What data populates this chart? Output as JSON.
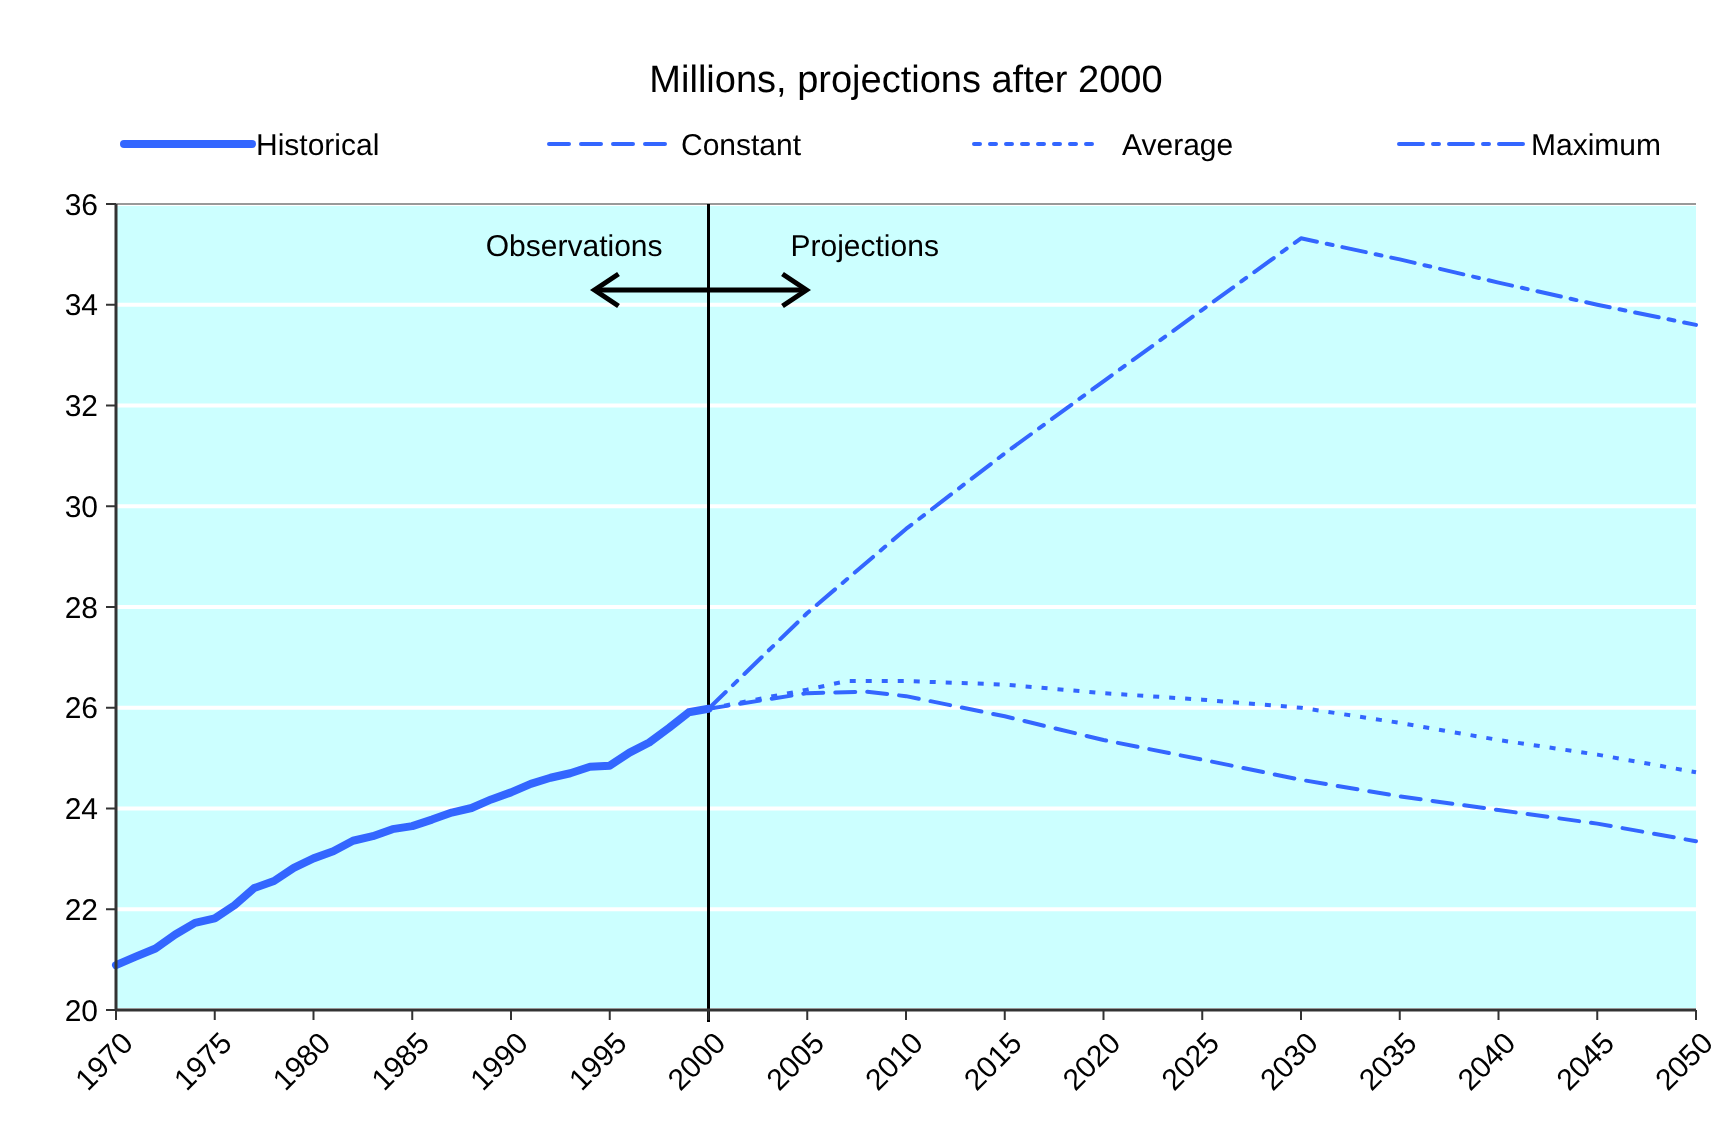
{
  "chart_data": {
    "type": "line",
    "title": "Millions, projections after 2000",
    "xlim": [
      1970,
      2050
    ],
    "xticks": [
      1970,
      1975,
      1980,
      1985,
      1990,
      1995,
      2000,
      2005,
      2010,
      2015,
      2020,
      2025,
      2030,
      2035,
      2040,
      2045,
      2050
    ],
    "ylim": [
      20,
      36
    ],
    "yticks": [
      20,
      22,
      24,
      26,
      28,
      30,
      32,
      34,
      36
    ],
    "grid": "y",
    "legend": "top",
    "marker": "none",
    "series": [
      {
        "name": "Historical",
        "color": "#3366ff",
        "line_style": "solid",
        "x": [
          1970,
          1971,
          1972,
          1973,
          1974,
          1975,
          1976,
          1977,
          1978,
          1979,
          1980,
          1981,
          1982,
          1983,
          1984,
          1985,
          1986,
          1987,
          1988,
          1989,
          1990,
          1991,
          1992,
          1993,
          1994,
          1995,
          1996,
          1997,
          1998,
          1999,
          2000
        ],
        "values": [
          20.89,
          21.06,
          21.22,
          21.5,
          21.73,
          21.82,
          22.08,
          22.42,
          22.56,
          22.82,
          23.01,
          23.15,
          23.36,
          23.45,
          23.59,
          23.65,
          23.78,
          23.92,
          24.01,
          24.18,
          24.32,
          24.49,
          24.61,
          24.7,
          24.83,
          24.85,
          25.11,
          25.31,
          25.6,
          25.91,
          25.98
        ]
      },
      {
        "name": "Constant",
        "color": "#3366ff",
        "line_style": "dashed",
        "x": [
          2000,
          2005,
          2008,
          2010,
          2015,
          2020,
          2025,
          2030,
          2035,
          2040,
          2045,
          2050
        ],
        "values": [
          25.98,
          26.29,
          26.32,
          26.23,
          25.83,
          25.36,
          24.97,
          24.57,
          24.24,
          23.97,
          23.7,
          23.35
        ]
      },
      {
        "name": "Average",
        "color": "#3366ff",
        "line_style": "dotted",
        "x": [
          2000,
          2005,
          2007,
          2010,
          2015,
          2020,
          2025,
          2030,
          2035,
          2040,
          2045,
          2050
        ],
        "values": [
          25.98,
          26.36,
          26.53,
          26.53,
          26.46,
          26.29,
          26.16,
          26.0,
          25.7,
          25.36,
          25.07,
          24.72
        ]
      },
      {
        "name": "Maximum",
        "color": "#3366ff",
        "line_style": "dashdot",
        "x": [
          2000,
          2005,
          2010,
          2015,
          2020,
          2025,
          2030,
          2035,
          2040,
          2045,
          2050
        ],
        "values": [
          25.98,
          27.88,
          29.55,
          31.05,
          32.48,
          33.9,
          35.32,
          34.9,
          34.44,
          34.0,
          33.6
        ]
      }
    ],
    "ref_lines": [
      {
        "axis": "x",
        "value": 2000,
        "color": "#000000"
      }
    ],
    "annotations": [
      "Observations",
      "Projections"
    ]
  }
}
